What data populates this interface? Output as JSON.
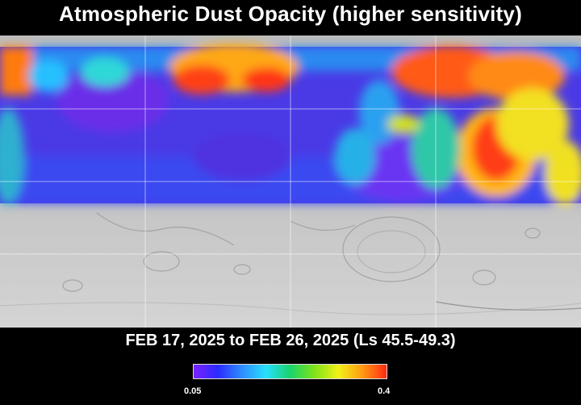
{
  "title": "Atmospheric Dust Opacity (higher sensitivity)",
  "subtitle": "FEB 17, 2025 to FEB 26, 2025 (Ls 45.5-49.3)",
  "colorbar": {
    "min_label": "0.05",
    "max_label": "0.4",
    "colors": [
      "#7a22ff",
      "#2b2bff",
      "#2f8dff",
      "#28e0ff",
      "#19d36b",
      "#7ee21a",
      "#f2f217",
      "#ff9a12",
      "#ff2a14"
    ]
  },
  "map": {
    "basemap": "grey shaded-relief Mars surface",
    "grid": "on",
    "colors": {
      "low": "#5a3cf0",
      "high": "#ff2a14"
    }
  }
}
